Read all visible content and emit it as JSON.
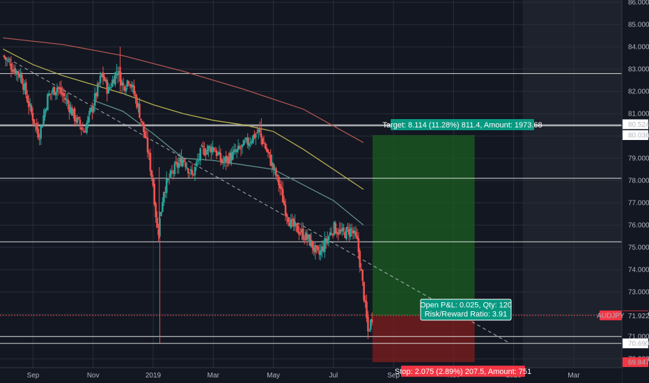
{
  "chart_data": {
    "type": "candlestick",
    "symbol": "AUDJPY",
    "colors": {
      "background": "#131722",
      "future_zone": "#1e222d",
      "grid": "#2a2e39",
      "axis_text": "#b2b5be",
      "up": "#26a69a",
      "down": "#ef5350",
      "ma_fast": "#5f8f8a",
      "ma_mid": "#b5b04f",
      "ma_slow": "#b0564f",
      "level_line": "#ffffff",
      "target_fill": "#1b5e20",
      "stop_fill": "#7f1d1d",
      "target_label": "#089981",
      "stop_label": "#f23645",
      "price_badge": "#f23645"
    },
    "x_axis": {
      "labels": [
        "Sep",
        "Nov",
        "2019",
        "Mar",
        "May",
        "Jul",
        "Sep",
        "Nov",
        "2020",
        "Mar"
      ],
      "months": [
        1,
        3,
        5,
        7,
        9,
        11,
        13,
        15,
        17,
        19
      ]
    },
    "y_axis": {
      "ylim": [
        69.6,
        86.1
      ],
      "ticks": [
        "86.000",
        "85.000",
        "84.000",
        "83.000",
        "82.000",
        "81.000",
        "80.000",
        "79.000",
        "78.000",
        "77.000",
        "76.000",
        "75.000",
        "74.000",
        "73.000",
        "72.000",
        "71.000",
        "70.000"
      ],
      "tick_values": [
        86,
        85,
        84,
        83,
        82,
        81,
        80,
        79,
        78,
        77,
        76,
        75,
        74,
        73,
        72,
        71,
        70
      ]
    },
    "horizontal_levels": [
      82.8,
      80.5,
      80.45,
      78.1,
      75.25,
      71.0,
      70.69
    ],
    "price_pivots": [
      [
        0.0,
        83.6
      ],
      [
        0.3,
        83.1
      ],
      [
        0.6,
        82.7
      ],
      [
        0.9,
        81.2
      ],
      [
        1.2,
        80.0
      ],
      [
        1.5,
        81.8
      ],
      [
        1.8,
        82.2
      ],
      [
        2.1,
        81.6
      ],
      [
        2.4,
        80.8
      ],
      [
        2.7,
        80.2
      ],
      [
        3.0,
        81.4
      ],
      [
        3.3,
        82.8
      ],
      [
        3.5,
        82.0
      ],
      [
        3.8,
        83.0
      ],
      [
        4.0,
        82.2
      ],
      [
        4.2,
        82.6
      ],
      [
        4.5,
        81.3
      ],
      [
        4.8,
        79.5
      ],
      [
        5.0,
        77.8
      ],
      [
        5.15,
        75.5
      ],
      [
        5.35,
        77.6
      ],
      [
        5.7,
        78.5
      ],
      [
        6.0,
        79.0
      ],
      [
        6.3,
        78.2
      ],
      [
        6.6,
        79.3
      ],
      [
        7.0,
        79.5
      ],
      [
        7.3,
        78.8
      ],
      [
        7.6,
        79.1
      ],
      [
        7.9,
        79.4
      ],
      [
        8.2,
        79.8
      ],
      [
        8.5,
        80.2
      ],
      [
        8.7,
        79.6
      ],
      [
        8.9,
        78.9
      ],
      [
        9.2,
        77.8
      ],
      [
        9.4,
        76.7
      ],
      [
        9.6,
        76.0
      ],
      [
        9.9,
        75.7
      ],
      [
        10.2,
        75.3
      ],
      [
        10.5,
        74.6
      ],
      [
        10.8,
        75.4
      ],
      [
        11.0,
        75.9
      ],
      [
        11.3,
        75.6
      ],
      [
        11.6,
        75.8
      ],
      [
        11.8,
        75.2
      ],
      [
        12.0,
        73.0
      ],
      [
        12.15,
        71.2
      ],
      [
        12.3,
        71.95
      ]
    ],
    "moving_averages": [
      {
        "name": "MA fast",
        "color": "#5f8f8a",
        "points": [
          [
            3.0,
            81.6
          ],
          [
            4.0,
            81.1
          ],
          [
            5.0,
            80.1
          ],
          [
            6.0,
            79.0
          ],
          [
            7.0,
            78.9
          ],
          [
            8.0,
            78.7
          ],
          [
            9.0,
            78.5
          ],
          [
            10.0,
            77.8
          ],
          [
            11.0,
            77.1
          ],
          [
            12.0,
            76.0
          ]
        ]
      },
      {
        "name": "MA mid",
        "color": "#b5b04f",
        "points": [
          [
            0.0,
            83.9
          ],
          [
            1.0,
            83.2
          ],
          [
            2.0,
            82.7
          ],
          [
            3.0,
            82.3
          ],
          [
            4.0,
            81.9
          ],
          [
            5.0,
            81.4
          ],
          [
            6.0,
            81.0
          ],
          [
            7.0,
            80.7
          ],
          [
            8.0,
            80.5
          ],
          [
            9.0,
            80.2
          ],
          [
            10.0,
            79.4
          ],
          [
            11.0,
            78.5
          ],
          [
            12.0,
            77.6
          ]
        ]
      },
      {
        "name": "MA slow",
        "color": "#b0564f",
        "points": [
          [
            0.0,
            84.4
          ],
          [
            2.0,
            84.1
          ],
          [
            4.0,
            83.6
          ],
          [
            6.0,
            82.9
          ],
          [
            8.0,
            82.1
          ],
          [
            10.0,
            81.2
          ],
          [
            12.0,
            79.7
          ]
        ]
      }
    ],
    "trend_line": [
      [
        0.0,
        83.6
      ],
      [
        16.8,
        70.75
      ]
    ],
    "position": {
      "x_start": 12.3,
      "x_end": 15.7,
      "entry": 71.922,
      "target": 80.036,
      "stop": 69.847
    },
    "target_label": "Target: 8.114 (11.28%) 811.4, Amount: 1973.68",
    "stop_label": "Stop: 2.075 (2.89%) 207.5, Amount: 751",
    "pnl_label_line1": "Open P&L: 0.025, Qty: 120",
    "pnl_label_line2": "Risk/Reward Ratio: 3.91",
    "badges": [
      {
        "text": "80.524",
        "value": 80.524,
        "style": "white"
      },
      {
        "text": "80.036",
        "value": 80.036,
        "style": "white"
      },
      {
        "text": "71.947",
        "value": 71.947,
        "style": "red"
      },
      {
        "text": "71.922",
        "value": 71.922,
        "style": "plain"
      },
      {
        "text": "70.690",
        "value": 70.69,
        "style": "white"
      },
      {
        "text": "69.847",
        "value": 69.847,
        "style": "red"
      }
    ],
    "symbol_badge": "AUDJPY",
    "future_start_month": 17.3
  }
}
